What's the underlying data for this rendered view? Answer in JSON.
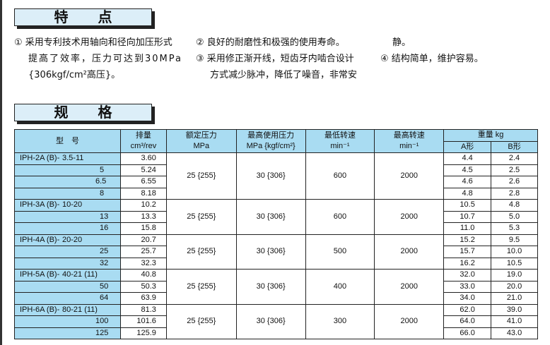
{
  "features": {
    "title": "特点",
    "items": [
      {
        "num": "①",
        "lines": [
          "采用专利技术用轴向和径向加压形式",
          "提高了效率，压力可达到30MPa",
          "{306kgf/cm²高压}。"
        ]
      },
      {
        "num": "②",
        "lines": [
          "良好的耐磨性和极强的使用寿命。"
        ]
      },
      {
        "num": "③",
        "lines": [
          "采用修正渐开线，短齿牙内啮合设计",
          "方式减少脉冲，降低了噪音，非常安"
        ]
      },
      {
        "cont": "静。"
      },
      {
        "num": "④",
        "lines": [
          "结构简单，维护容易。"
        ]
      }
    ]
  },
  "specs": {
    "title": "规格",
    "headers": {
      "model": "型　号",
      "displacement": [
        "排量",
        "cm³/rev"
      ],
      "rated": [
        "额定压力",
        "MPa"
      ],
      "max_pressure": [
        "最高使用压力",
        "MPa {kgf/cm²}"
      ],
      "min_speed": [
        "最低转速",
        "min⁻¹"
      ],
      "max_speed": [
        "最高转速",
        "min⁻¹"
      ],
      "weight": "重量  kg",
      "weight_a": "A形",
      "weight_b": "B形"
    },
    "groups": [
      {
        "series": "IPH-2A (B)-",
        "rated": "25 {255}",
        "max_pressure": "30 {306}",
        "min_speed": "600",
        "max_speed": "2000",
        "rows": [
          {
            "size": "3.5-11",
            "disp": "3.60",
            "a": "4.4",
            "b": "2.4"
          },
          {
            "size": "5",
            "disp": "5.24",
            "a": "4.5",
            "b": "2.5"
          },
          {
            "size": "6.5",
            "disp": "6.55",
            "a": "4.6",
            "b": "2.6"
          },
          {
            "size": "8",
            "disp": "8.18",
            "a": "4.8",
            "b": "2.8"
          }
        ]
      },
      {
        "series": "IPH-3A (B)-",
        "rated": "25 {255}",
        "max_pressure": "30 {306}",
        "min_speed": "600",
        "max_speed": "2000",
        "rows": [
          {
            "size": "10-20",
            "disp": "10.2",
            "a": "10.5",
            "b": "4.8"
          },
          {
            "size": "13",
            "disp": "13.3",
            "a": "10.7",
            "b": "5.0"
          },
          {
            "size": "16",
            "disp": "15.8",
            "a": "11.0",
            "b": "5.3"
          }
        ]
      },
      {
        "series": "IPH-4A (B)-",
        "rated": "25 {255}",
        "max_pressure": "30 {306}",
        "min_speed": "500",
        "max_speed": "2000",
        "rows": [
          {
            "size": "20-20",
            "disp": "20.7",
            "a": "15.2",
            "b": "9.5"
          },
          {
            "size": "25",
            "disp": "25.7",
            "a": "15.7",
            "b": "10.0"
          },
          {
            "size": "32",
            "disp": "32.3",
            "a": "16.2",
            "b": "10.5"
          }
        ]
      },
      {
        "series": "IPH-5A (B)-",
        "rated": "25 {255}",
        "max_pressure": "30 {306}",
        "min_speed": "400",
        "max_speed": "2000",
        "rows": [
          {
            "size": "40-21 (11)",
            "disp": "40.8",
            "a": "32.0",
            "b": "19.0"
          },
          {
            "size": "50",
            "disp": "50.3",
            "a": "33.0",
            "b": "20.0"
          },
          {
            "size": "64",
            "disp": "63.9",
            "a": "34.0",
            "b": "21.0"
          }
        ]
      },
      {
        "series": "IPH-6A (B)-",
        "rated": "25 {255}",
        "max_pressure": "30 {306}",
        "min_speed": "300",
        "max_speed": "2000",
        "rows": [
          {
            "size": "80-21 (11)",
            "disp": "81.3",
            "a": "62.0",
            "b": "39.0"
          },
          {
            "size": "100",
            "disp": "101.6",
            "a": "64.0",
            "b": "41.0"
          },
          {
            "size": "125",
            "disp": "125.9",
            "a": "66.0",
            "b": "43.0"
          }
        ]
      }
    ]
  }
}
